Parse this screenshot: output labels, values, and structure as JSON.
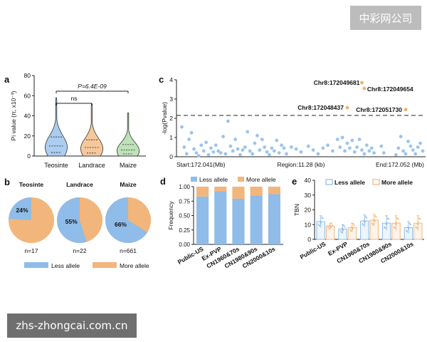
{
  "watermarks": {
    "top": "中彩网公司",
    "bottom": "zhs-zhongcai.com.cn"
  },
  "colors": {
    "blue": "#8fbce9",
    "orange": "#f2b57b",
    "dot_blue": "#9cc4ec",
    "dot_orange": "#efb06c",
    "green": "#a8d8a0"
  },
  "chart_data": [
    {
      "panel": "a",
      "type": "violin",
      "categories": [
        "Teosinte",
        "Landrace",
        "Maize"
      ],
      "ylabel": "Pi value (π, x10⁻³)",
      "ylim": [
        0,
        80
      ],
      "yticks": [
        0,
        20,
        40,
        60,
        80
      ],
      "medians": [
        10,
        8.5,
        6
      ],
      "maxima": [
        58,
        52,
        43
      ],
      "annotations": [
        {
          "text": "P=6.4E-09",
          "between": [
            "Teosinte",
            "Maize"
          ]
        },
        {
          "text": "ns",
          "between": [
            "Teosinte",
            "Landrace"
          ]
        }
      ]
    },
    {
      "panel": "b",
      "type": "pie",
      "legend": [
        "Less allele",
        "More allele"
      ],
      "pies": [
        {
          "title": "Teosinte",
          "less_pct": 24,
          "label": "24%",
          "n": "n=17"
        },
        {
          "title": "Landrace",
          "less_pct": 55,
          "label": "55%",
          "n": "n=22"
        },
        {
          "title": "Maize",
          "less_pct": 66,
          "label": "66%",
          "n": "n=661"
        }
      ]
    },
    {
      "panel": "c",
      "type": "scatter",
      "ylabel": "-log(Pvalue)",
      "ylim": [
        0,
        4
      ],
      "yticks": [
        0,
        1,
        2,
        3,
        4
      ],
      "threshold": 2.15,
      "xlabels": {
        "start": "Start:172.041(Mb)",
        "region": "Region:11.28 (kb)",
        "end": "End:172.052 (Mb)"
      },
      "xlim": [
        0,
        100
      ],
      "highlighted": [
        {
          "label": "Chr8:172049681",
          "x": 75,
          "y": 3.85
        },
        {
          "label": "Chr8:172049654",
          "x": 76,
          "y": 3.55
        },
        {
          "label": "Chr8:172048437",
          "x": 69,
          "y": 2.55
        },
        {
          "label": "Chr8:172051730",
          "x": 93,
          "y": 2.45
        }
      ],
      "points": [
        [
          1,
          1.55
        ],
        [
          2,
          0.5
        ],
        [
          3,
          0.15
        ],
        [
          4,
          0.9
        ],
        [
          5,
          1.25
        ],
        [
          6,
          0.4
        ],
        [
          7,
          0.2
        ],
        [
          8,
          0.05
        ],
        [
          9,
          0.6
        ],
        [
          10,
          0.3
        ],
        [
          11,
          0.75
        ],
        [
          12,
          0.1
        ],
        [
          13,
          0.45
        ],
        [
          14,
          0.25
        ],
        [
          15,
          0.6
        ],
        [
          16,
          0.3
        ],
        [
          17,
          0.2
        ],
        [
          18,
          1.05
        ],
        [
          19,
          0.15
        ],
        [
          20,
          1.85
        ],
        [
          21,
          0.55
        ],
        [
          22,
          0.3
        ],
        [
          23,
          0.9
        ],
        [
          24,
          0.4
        ],
        [
          25,
          0.1
        ],
        [
          26,
          0.35
        ],
        [
          27,
          0.5
        ],
        [
          28,
          1.3
        ],
        [
          29,
          0.3
        ],
        [
          30,
          0.15
        ],
        [
          31,
          0.7
        ],
        [
          32,
          1.1
        ],
        [
          33,
          0.35
        ],
        [
          34,
          0.9
        ],
        [
          35,
          0.5
        ],
        [
          36,
          0.25
        ],
        [
          37,
          0.1
        ],
        [
          38,
          0.45
        ],
        [
          39,
          0.3
        ],
        [
          40,
          0.85
        ],
        [
          41,
          0.2
        ],
        [
          42,
          0.6
        ],
        [
          43,
          0.45
        ],
        [
          44,
          0.15
        ],
        [
          46,
          0.5
        ],
        [
          48,
          0.4
        ],
        [
          50,
          0.25
        ],
        [
          53,
          0.55
        ],
        [
          55,
          0.35
        ],
        [
          57,
          0.15
        ],
        [
          59,
          0.45
        ],
        [
          61,
          0.6
        ],
        [
          63,
          0.3
        ],
        [
          65,
          0.9
        ],
        [
          66,
          0.5
        ],
        [
          67,
          1.0
        ],
        [
          68,
          0.3
        ],
        [
          69,
          0.7
        ],
        [
          70,
          0.45
        ],
        [
          71,
          0.85
        ],
        [
          72,
          0.25
        ],
        [
          73,
          0.5
        ],
        [
          74,
          0.9
        ],
        [
          75,
          0.35
        ],
        [
          76,
          0.15
        ],
        [
          77,
          0.6
        ],
        [
          78,
          0.3
        ],
        [
          79,
          0.45
        ],
        [
          80,
          0.2
        ],
        [
          83,
          0.55
        ],
        [
          84,
          0.2
        ],
        [
          89,
          0.1
        ],
        [
          90,
          0.45
        ],
        [
          91,
          1.05
        ],
        [
          92,
          0.3
        ],
        [
          93,
          0.15
        ],
        [
          94,
          0.8
        ],
        [
          95,
          0.55
        ],
        [
          96,
          0.35
        ],
        [
          97,
          0.15
        ],
        [
          98,
          0.5
        ],
        [
          99,
          0.7
        ],
        [
          100,
          0.3
        ]
      ]
    },
    {
      "panel": "d",
      "type": "bar",
      "stacked": true,
      "ylabel": "Frequency",
      "ylim": [
        0,
        1
      ],
      "yticks": [
        "0.00",
        "0.25",
        "0.50",
        "0.75",
        "1.00"
      ],
      "categories": [
        "Public-US",
        "Ex-PVP",
        "CN1960&70s",
        "CN1980&90s",
        "CN2000&10s"
      ],
      "series": [
        {
          "name": "Less allele",
          "values": [
            0.83,
            0.92,
            0.79,
            0.85,
            0.87
          ]
        },
        {
          "name": "More allele",
          "values": [
            0.17,
            0.08,
            0.21,
            0.15,
            0.13
          ]
        }
      ]
    },
    {
      "panel": "e",
      "type": "bar",
      "ylabel": "TBN",
      "ylim": [
        0,
        40
      ],
      "yticks": [
        0,
        10,
        20,
        30,
        40
      ],
      "categories": [
        "Public-US",
        "Ex-PVP",
        "CN1960&70s",
        "CN1980&90s",
        "CN2000&10s"
      ],
      "series": [
        {
          "name": "Less allele",
          "values": [
            12,
            7,
            12.5,
            11,
            8
          ],
          "err": [
            4,
            3,
            4,
            5,
            4
          ]
        },
        {
          "name": "More allele",
          "values": [
            9,
            8,
            13,
            11,
            11
          ],
          "err": [
            2,
            3,
            4,
            5,
            5
          ]
        }
      ]
    }
  ]
}
